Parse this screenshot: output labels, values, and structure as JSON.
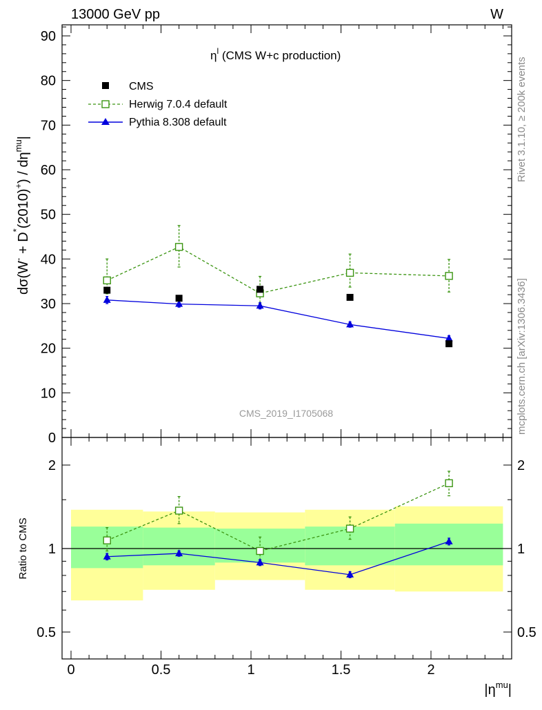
{
  "header": {
    "left": "13000 GeV pp",
    "right": "W"
  },
  "side_labels": {
    "rivet": "Rivet 3.1.10, ≥ 200k events",
    "mcplots": "mcplots.cern.ch [arXiv:1306.3436]"
  },
  "main_plot": {
    "title_main": "η",
    "title_sup": "l",
    "title_rest": " (CMS W+c production)",
    "watermark": "CMS_2019_I1705068",
    "ylabel": {
      "p1": "dσ(W",
      "s1": "-",
      "p2": " + D",
      "s2": "*",
      "p3": "(2010)",
      "s3": "+",
      "p4": ") / dη",
      "s4": "mu",
      "p5": "|"
    }
  },
  "ratio_plot": {
    "ylabel": "Ratio to CMS"
  },
  "xaxis": {
    "label_pre": "|η",
    "label_sup": "mu",
    "label_post": "|"
  },
  "legend": [
    {
      "label": "CMS",
      "color": "#000000",
      "marker": "square-filled"
    },
    {
      "label": "Herwig 7.0.4 default",
      "color": "#3a9410",
      "marker": "square-open",
      "dash": true
    },
    {
      "label": "Pythia 8.308 default",
      "color": "#0000dd",
      "marker": "triangle-filled"
    }
  ],
  "chart_data": [
    {
      "type": "scatter",
      "panel": "main",
      "title": "η^l (CMS W+c production)",
      "ylabel": "dσ(W^- + D^*(2010)^+) / d|η^mu|",
      "xlabel": "|η^mu|",
      "xlim": [
        -0.05,
        2.45
      ],
      "ylim": [
        0,
        93
      ],
      "x_ticks": [
        "0",
        "0.5",
        "1",
        "1.5",
        "2"
      ],
      "x_tick_values": [
        0,
        0.5,
        1,
        1.5,
        2
      ],
      "y_ticks": [
        "0",
        "10",
        "20",
        "30",
        "40",
        "50",
        "60",
        "70",
        "80",
        "90"
      ],
      "y_tick_values": [
        0,
        10,
        20,
        30,
        40,
        50,
        60,
        70,
        80,
        90
      ],
      "x": [
        0.2,
        0.6,
        1.05,
        1.55,
        2.1
      ],
      "series": [
        {
          "name": "CMS",
          "values": [
            33.0,
            31.2,
            33.2,
            31.4,
            21.0
          ]
        },
        {
          "name": "Herwig 7.0.4 default",
          "values": [
            35.2,
            42.7,
            32.3,
            36.9,
            36.2
          ],
          "err_low": [
            3.0,
            4.5,
            2.3,
            3.2,
            3.6
          ],
          "err_high": [
            4.8,
            4.8,
            3.8,
            4.2,
            3.7
          ]
        },
        {
          "name": "Pythia 8.308 default",
          "values": [
            30.8,
            29.9,
            29.5,
            25.3,
            22.2
          ],
          "err_low": [
            0.8,
            0.7,
            0.7,
            0.6,
            0.6
          ],
          "err_high": [
            0.8,
            0.7,
            0.7,
            0.6,
            0.6
          ]
        }
      ],
      "legend_position": "top-left"
    },
    {
      "type": "scatter",
      "panel": "ratio",
      "ylabel": "Ratio to CMS",
      "xlabel": "|η^mu|",
      "xlim": [
        -0.05,
        2.45
      ],
      "ylim": [
        0.4,
        2.4
      ],
      "y_scale": "log",
      "y_ticks": [
        "0.5",
        "1",
        "2"
      ],
      "y_tick_values": [
        0.5,
        1,
        2
      ],
      "x": [
        0.2,
        0.6,
        1.05,
        1.55,
        2.1
      ],
      "bins": [
        [
          0.0,
          0.4
        ],
        [
          0.4,
          0.8
        ],
        [
          0.8,
          1.3
        ],
        [
          1.3,
          1.8
        ],
        [
          1.8,
          2.4
        ]
      ],
      "band_inner": [
        [
          0.85,
          1.2
        ],
        [
          0.87,
          1.19
        ],
        [
          0.89,
          1.18
        ],
        [
          0.87,
          1.2
        ],
        [
          0.87,
          1.23
        ]
      ],
      "band_outer": [
        [
          0.65,
          1.38
        ],
        [
          0.71,
          1.36
        ],
        [
          0.77,
          1.35
        ],
        [
          0.71,
          1.38
        ],
        [
          0.7,
          1.42
        ]
      ],
      "series": [
        {
          "name": "Herwig 7.0.4 default",
          "values": [
            1.07,
            1.37,
            0.98,
            1.18,
            1.72
          ],
          "err_low": [
            0.09,
            0.14,
            0.07,
            0.1,
            0.17
          ],
          "err_high": [
            0.12,
            0.17,
            0.12,
            0.12,
            0.18
          ]
        },
        {
          "name": "Pythia 8.308 default",
          "values": [
            0.935,
            0.96,
            0.89,
            0.805,
            1.06
          ],
          "err_low": [
            0.025,
            0.022,
            0.022,
            0.02,
            0.03
          ],
          "err_high": [
            0.025,
            0.022,
            0.022,
            0.02,
            0.03
          ]
        }
      ],
      "reference_line": 1
    }
  ]
}
